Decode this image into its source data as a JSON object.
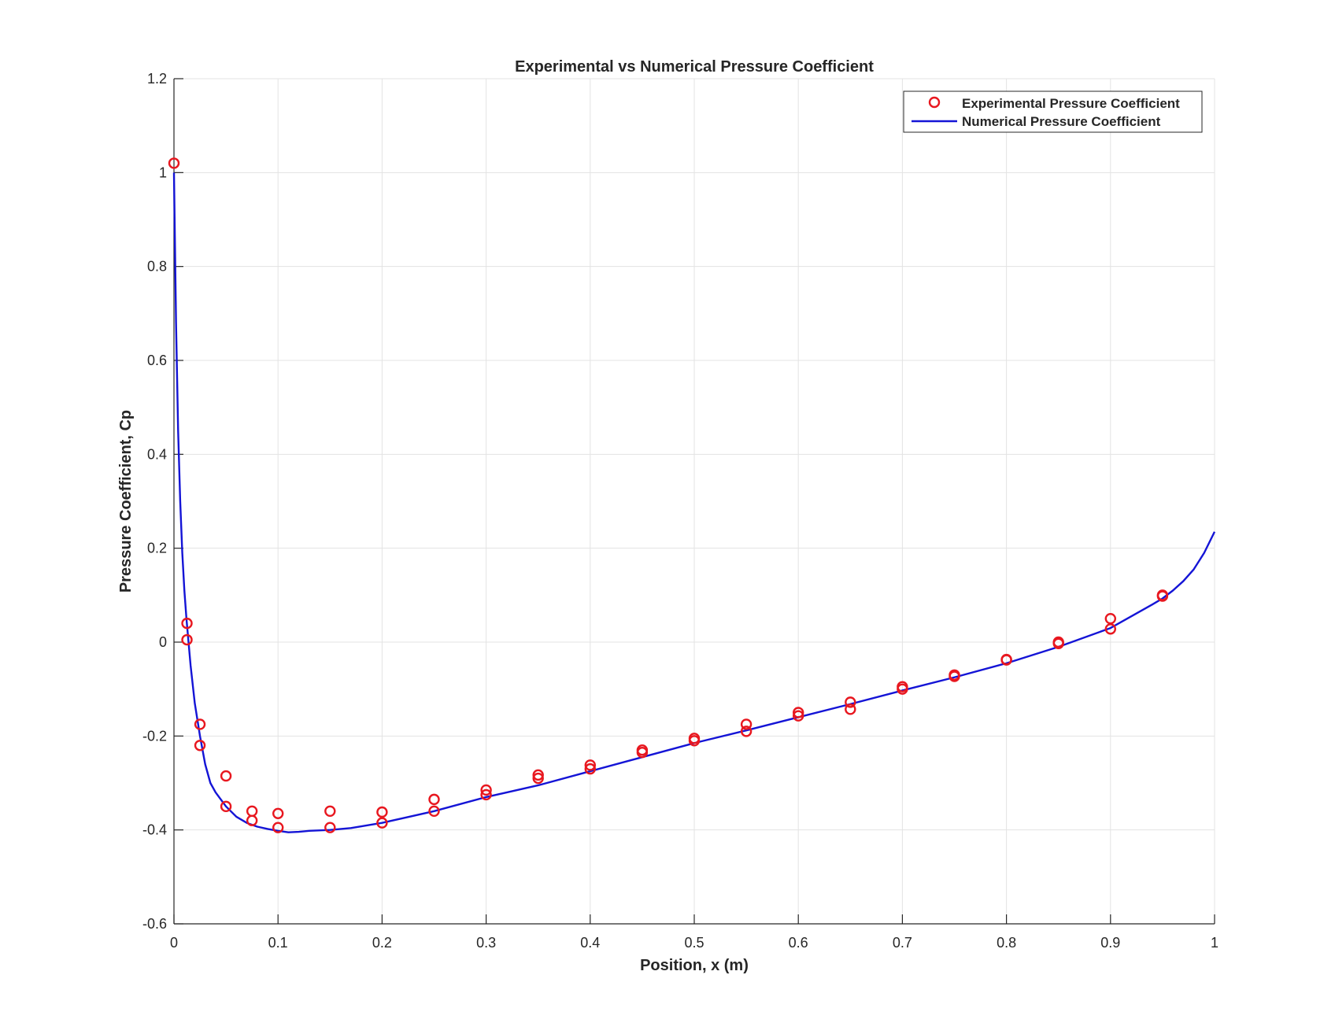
{
  "chart_data": {
    "type": "line",
    "title": "Experimental vs Numerical Pressure Coefficient",
    "xlabel": "Position, x (m)",
    "ylabel": "Pressure Coefficient, Cp",
    "xlim": [
      0,
      1
    ],
    "ylim": [
      -0.6,
      1.2
    ],
    "x_ticks": [
      0,
      0.1,
      0.2,
      0.3,
      0.4,
      0.5,
      0.6,
      0.7,
      0.8,
      0.9,
      1
    ],
    "x_tick_labels": [
      "0",
      "0.1",
      "0.2",
      "0.3",
      "0.4",
      "0.5",
      "0.6",
      "0.7",
      "0.8",
      "0.9",
      "1"
    ],
    "y_ticks": [
      -0.6,
      -0.4,
      -0.2,
      0,
      0.2,
      0.4,
      0.6,
      0.8,
      1,
      1.2
    ],
    "y_tick_labels": [
      "-0.6",
      "-0.4",
      "-0.2",
      "0",
      "0.2",
      "0.4",
      "0.6",
      "0.8",
      "1",
      "1.2"
    ],
    "grid": true,
    "legend_position": "top-right",
    "series": [
      {
        "name": "Experimental Pressure Coefficient",
        "type": "scatter",
        "marker": "circle-open",
        "color": "#e8171f",
        "x": [
          0,
          0.0125,
          0.0125,
          0.025,
          0.025,
          0.05,
          0.05,
          0.075,
          0.075,
          0.1,
          0.1,
          0.15,
          0.15,
          0.2,
          0.2,
          0.25,
          0.25,
          0.3,
          0.3,
          0.35,
          0.35,
          0.4,
          0.4,
          0.45,
          0.45,
          0.5,
          0.5,
          0.55,
          0.55,
          0.6,
          0.6,
          0.65,
          0.65,
          0.7,
          0.7,
          0.75,
          0.75,
          0.8,
          0.8,
          0.85,
          0.85,
          0.9,
          0.9,
          0.95,
          0.95
        ],
        "y": [
          1.02,
          0.04,
          0.005,
          -0.175,
          -0.22,
          -0.285,
          -0.35,
          -0.36,
          -0.38,
          -0.365,
          -0.395,
          -0.36,
          -0.395,
          -0.362,
          -0.385,
          -0.335,
          -0.36,
          -0.315,
          -0.325,
          -0.283,
          -0.29,
          -0.262,
          -0.27,
          -0.23,
          -0.235,
          -0.205,
          -0.21,
          -0.175,
          -0.19,
          -0.15,
          -0.157,
          -0.128,
          -0.143,
          -0.095,
          -0.1,
          -0.07,
          -0.073,
          -0.037,
          -0.038,
          0.0,
          -0.003,
          0.05,
          0.028,
          0.1,
          0.098
        ]
      },
      {
        "name": "Numerical Pressure Coefficient",
        "type": "line",
        "color": "#1414d6",
        "x": [
          0,
          0.002,
          0.004,
          0.006,
          0.008,
          0.01,
          0.012,
          0.014,
          0.016,
          0.018,
          0.02,
          0.025,
          0.03,
          0.035,
          0.04,
          0.05,
          0.06,
          0.07,
          0.08,
          0.09,
          0.1,
          0.11,
          0.12,
          0.13,
          0.15,
          0.17,
          0.2,
          0.25,
          0.3,
          0.35,
          0.4,
          0.45,
          0.5,
          0.55,
          0.6,
          0.65,
          0.7,
          0.75,
          0.8,
          0.85,
          0.9,
          0.92,
          0.94,
          0.95,
          0.96,
          0.97,
          0.98,
          0.99,
          1.0
        ],
        "y": [
          1.0,
          0.68,
          0.45,
          0.3,
          0.19,
          0.11,
          0.05,
          0.0,
          -0.05,
          -0.09,
          -0.13,
          -0.2,
          -0.26,
          -0.3,
          -0.32,
          -0.35,
          -0.372,
          -0.385,
          -0.393,
          -0.398,
          -0.402,
          -0.405,
          -0.404,
          -0.402,
          -0.4,
          -0.396,
          -0.385,
          -0.36,
          -0.33,
          -0.305,
          -0.275,
          -0.245,
          -0.215,
          -0.188,
          -0.16,
          -0.132,
          -0.103,
          -0.075,
          -0.045,
          -0.01,
          0.03,
          0.055,
          0.08,
          0.093,
          0.11,
          0.13,
          0.155,
          0.19,
          0.235
        ]
      }
    ]
  }
}
